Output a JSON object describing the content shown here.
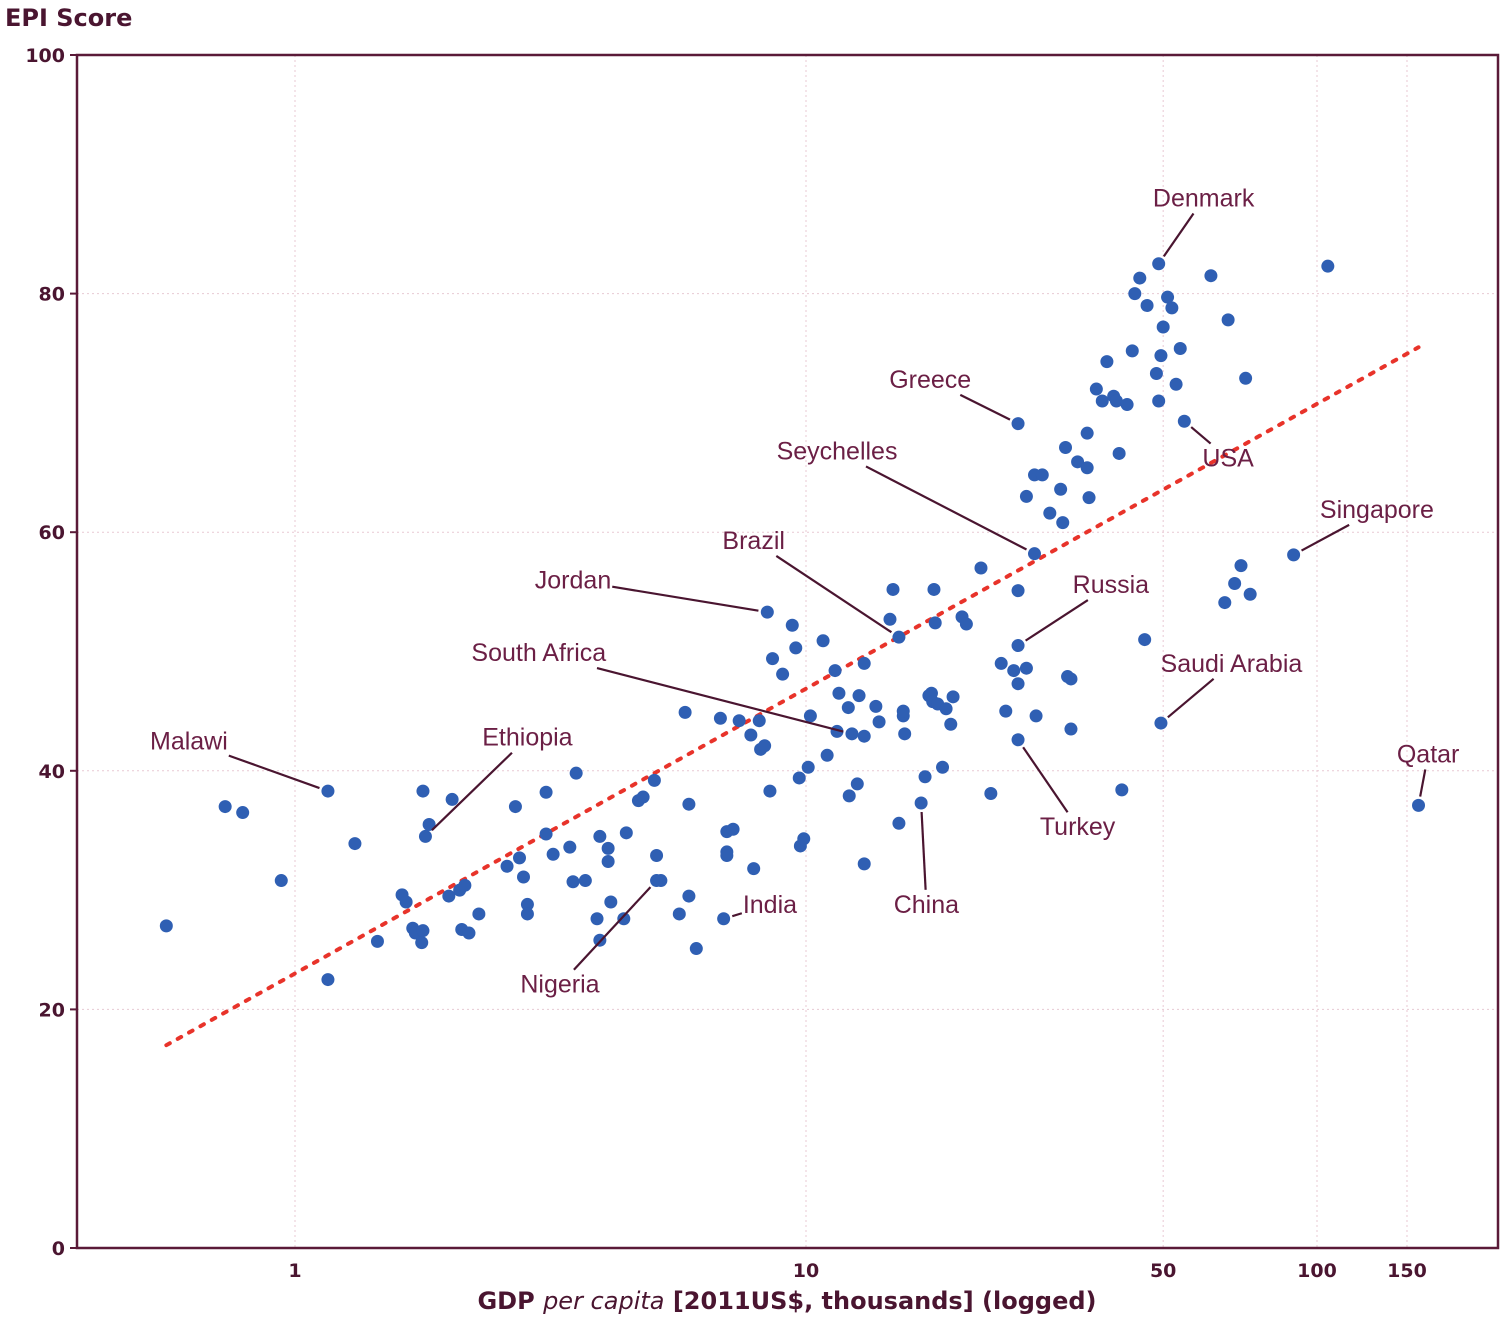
{
  "chart_data": {
    "type": "scatter",
    "title": "",
    "ylabel": "EPI Score",
    "xlabel_parts": [
      "GDP ",
      "per capita",
      " [2011US$, thousands] (logged)"
    ],
    "x_scale": "log",
    "xlim": [
      0.37,
      200
    ],
    "ylim": [
      0,
      100
    ],
    "x_ticks": [
      1,
      10,
      50,
      100,
      150
    ],
    "x_tick_labels": [
      "1",
      "10",
      "50",
      "100",
      "150"
    ],
    "y_ticks": [
      0,
      20,
      40,
      60,
      80,
      100
    ],
    "y_tick_labels": [
      "0",
      "20",
      "40",
      "60",
      "80",
      "100"
    ],
    "grid": true,
    "trend_line": {
      "x": [
        0.56,
        158
      ],
      "y": [
        17,
        75.5
      ],
      "color": "#e8332a"
    },
    "point_color": "#2f5fb3",
    "labeled_points": [
      {
        "name": "Denmark",
        "x": 49,
        "y": 82.5,
        "label_x": 60,
        "label_y": 87.3
      },
      {
        "name": "Greece",
        "x": 26,
        "y": 69.1,
        "label_x": 17.5,
        "label_y": 72.1
      },
      {
        "name": "USA",
        "x": 55,
        "y": 69.3,
        "label_x": 67,
        "label_y": 65.5
      },
      {
        "name": "Seychelles",
        "x": 28,
        "y": 58.2,
        "label_x": 11.5,
        "label_y": 66.1
      },
      {
        "name": "Singapore",
        "x": 90,
        "y": 58.1,
        "label_x": 131,
        "label_y": 61.2
      },
      {
        "name": "Brazil",
        "x": 15.2,
        "y": 51.2,
        "label_x": 7.9,
        "label_y": 58.6
      },
      {
        "name": "Jordan",
        "x": 8.4,
        "y": 53.3,
        "label_x": 3.5,
        "label_y": 55.3
      },
      {
        "name": "Russia",
        "x": 26,
        "y": 50.5,
        "label_x": 39.5,
        "label_y": 54.9
      },
      {
        "name": "South Africa",
        "x": 12.3,
        "y": 43.1,
        "label_x": 3,
        "label_y": 49.2
      },
      {
        "name": "Saudi Arabia",
        "x": 49.5,
        "y": 44,
        "label_x": 68,
        "label_y": 48.3
      },
      {
        "name": "Malawi",
        "x": 1.16,
        "y": 38.3,
        "label_x": 0.62,
        "label_y": 41.8
      },
      {
        "name": "Ethiopia",
        "x": 1.8,
        "y": 34.5,
        "label_x": 2.85,
        "label_y": 42.1
      },
      {
        "name": "Qatar",
        "x": 158,
        "y": 37.1,
        "label_x": 165,
        "label_y": 40.7
      },
      {
        "name": "Turkey",
        "x": 26,
        "y": 42.6,
        "label_x": 34,
        "label_y": 34.6
      },
      {
        "name": "Nigeria",
        "x": 5.1,
        "y": 30.8,
        "label_x": 3.3,
        "label_y": 21.4
      },
      {
        "name": "India",
        "x": 6.9,
        "y": 27.6,
        "label_x": 8.5,
        "label_y": 28.1
      },
      {
        "name": "China",
        "x": 16.8,
        "y": 37.3,
        "label_x": 17.2,
        "label_y": 28.1
      }
    ],
    "points": [
      [
        0.56,
        27
      ],
      [
        0.73,
        37
      ],
      [
        0.79,
        36.5
      ],
      [
        0.94,
        30.8
      ],
      [
        1.16,
        22.5
      ],
      [
        1.31,
        33.9
      ],
      [
        1.45,
        25.7
      ],
      [
        1.62,
        29.6
      ],
      [
        1.65,
        29
      ],
      [
        1.7,
        26.8
      ],
      [
        1.72,
        26.4
      ],
      [
        1.77,
        25.6
      ],
      [
        1.78,
        26.6
      ],
      [
        1.78,
        38.3
      ],
      [
        1.83,
        35.5
      ],
      [
        2,
        29.5
      ],
      [
        2.03,
        37.6
      ],
      [
        2.1,
        30
      ],
      [
        2.12,
        26.7
      ],
      [
        2.15,
        30.4
      ],
      [
        2.19,
        26.4
      ],
      [
        2.29,
        28
      ],
      [
        2.6,
        32
      ],
      [
        2.7,
        37
      ],
      [
        2.75,
        32.7
      ],
      [
        2.8,
        31.1
      ],
      [
        2.85,
        28.8
      ],
      [
        2.85,
        28
      ],
      [
        3.1,
        34.7
      ],
      [
        3.1,
        38.2
      ],
      [
        3.2,
        33
      ],
      [
        3.45,
        33.6
      ],
      [
        3.5,
        30.7
      ],
      [
        3.55,
        39.8
      ],
      [
        3.7,
        30.8
      ],
      [
        3.9,
        27.6
      ],
      [
        3.95,
        25.8
      ],
      [
        3.95,
        34.5
      ],
      [
        4.1,
        33.5
      ],
      [
        4.1,
        32.4
      ],
      [
        4.15,
        29
      ],
      [
        4.4,
        27.6
      ],
      [
        4.45,
        34.8
      ],
      [
        4.7,
        37.5
      ],
      [
        4.8,
        37.8
      ],
      [
        5.05,
        39.2
      ],
      [
        5.1,
        32.9
      ],
      [
        5.2,
        30.8
      ],
      [
        5.65,
        28
      ],
      [
        5.8,
        44.9
      ],
      [
        5.9,
        29.5
      ],
      [
        5.9,
        37.2
      ],
      [
        6.1,
        25.1
      ],
      [
        6.8,
        44.4
      ],
      [
        7,
        33.2
      ],
      [
        7,
        32.9
      ],
      [
        7,
        34.9
      ],
      [
        7.2,
        35.1
      ],
      [
        7.4,
        44.2
      ],
      [
        7.8,
        43
      ],
      [
        7.9,
        31.8
      ],
      [
        8.1,
        44.2
      ],
      [
        8.15,
        41.8
      ],
      [
        8.3,
        42.1
      ],
      [
        8.5,
        38.3
      ],
      [
        8.6,
        49.4
      ],
      [
        9,
        48.1
      ],
      [
        9.4,
        52.2
      ],
      [
        9.55,
        50.3
      ],
      [
        9.7,
        39.4
      ],
      [
        9.75,
        33.7
      ],
      [
        9.9,
        34.3
      ],
      [
        10.1,
        40.3
      ],
      [
        10.2,
        44.6
      ],
      [
        10.8,
        50.9
      ],
      [
        11,
        41.3
      ],
      [
        11.4,
        48.4
      ],
      [
        11.6,
        46.5
      ],
      [
        11.5,
        43.3
      ],
      [
        12.1,
        45.3
      ],
      [
        12.15,
        37.9
      ],
      [
        12.6,
        38.9
      ],
      [
        12.7,
        46.3
      ],
      [
        13,
        42.9
      ],
      [
        13,
        32.2
      ],
      [
        13,
        49
      ],
      [
        13.7,
        45.4
      ],
      [
        13.9,
        44.1
      ],
      [
        14.6,
        52.7
      ],
      [
        14.8,
        55.2
      ],
      [
        15.2,
        35.6
      ],
      [
        15.5,
        44.6
      ],
      [
        15.5,
        45
      ],
      [
        15.6,
        43.1
      ],
      [
        17.1,
        39.5
      ],
      [
        17.4,
        46.3
      ],
      [
        17.6,
        46.5
      ],
      [
        17.7,
        45.8
      ],
      [
        17.8,
        55.2
      ],
      [
        17.9,
        52.4
      ],
      [
        18.1,
        45.6
      ],
      [
        18.5,
        40.3
      ],
      [
        18.8,
        45.2
      ],
      [
        19.2,
        43.9
      ],
      [
        19.4,
        46.2
      ],
      [
        20.2,
        52.9
      ],
      [
        20.6,
        52.3
      ],
      [
        22,
        57
      ],
      [
        23,
        38.1
      ],
      [
        24.1,
        49
      ],
      [
        24.6,
        45
      ],
      [
        25.5,
        48.4
      ],
      [
        26,
        47.3
      ],
      [
        26,
        55.1
      ],
      [
        27,
        48.6
      ],
      [
        27,
        63
      ],
      [
        28,
        64.8
      ],
      [
        28.2,
        44.6
      ],
      [
        29,
        64.8
      ],
      [
        30,
        61.6
      ],
      [
        31.5,
        63.6
      ],
      [
        31.8,
        60.8
      ],
      [
        32.2,
        67.1
      ],
      [
        32.5,
        47.9
      ],
      [
        33,
        47.7
      ],
      [
        33,
        43.5
      ],
      [
        34,
        65.9
      ],
      [
        35.5,
        65.4
      ],
      [
        35.5,
        68.3
      ],
      [
        35.8,
        62.9
      ],
      [
        37,
        72
      ],
      [
        38,
        71
      ],
      [
        38.8,
        74.3
      ],
      [
        40,
        71.4
      ],
      [
        40.5,
        71
      ],
      [
        41,
        66.6
      ],
      [
        41.5,
        38.4
      ],
      [
        42.5,
        70.7
      ],
      [
        43.5,
        75.2
      ],
      [
        44,
        80
      ],
      [
        45,
        81.3
      ],
      [
        46,
        51
      ],
      [
        46.5,
        79
      ],
      [
        48.5,
        73.3
      ],
      [
        49,
        71
      ],
      [
        49.5,
        74.8
      ],
      [
        50,
        77.2
      ],
      [
        51,
        79.7
      ],
      [
        52,
        78.8
      ],
      [
        53,
        72.4
      ],
      [
        54,
        75.4
      ],
      [
        62,
        81.5
      ],
      [
        66,
        54.1
      ],
      [
        67,
        77.8
      ],
      [
        69,
        55.7
      ],
      [
        71,
        57.2
      ],
      [
        72.5,
        72.9
      ],
      [
        74,
        54.8
      ],
      [
        105,
        82.3
      ]
    ]
  }
}
